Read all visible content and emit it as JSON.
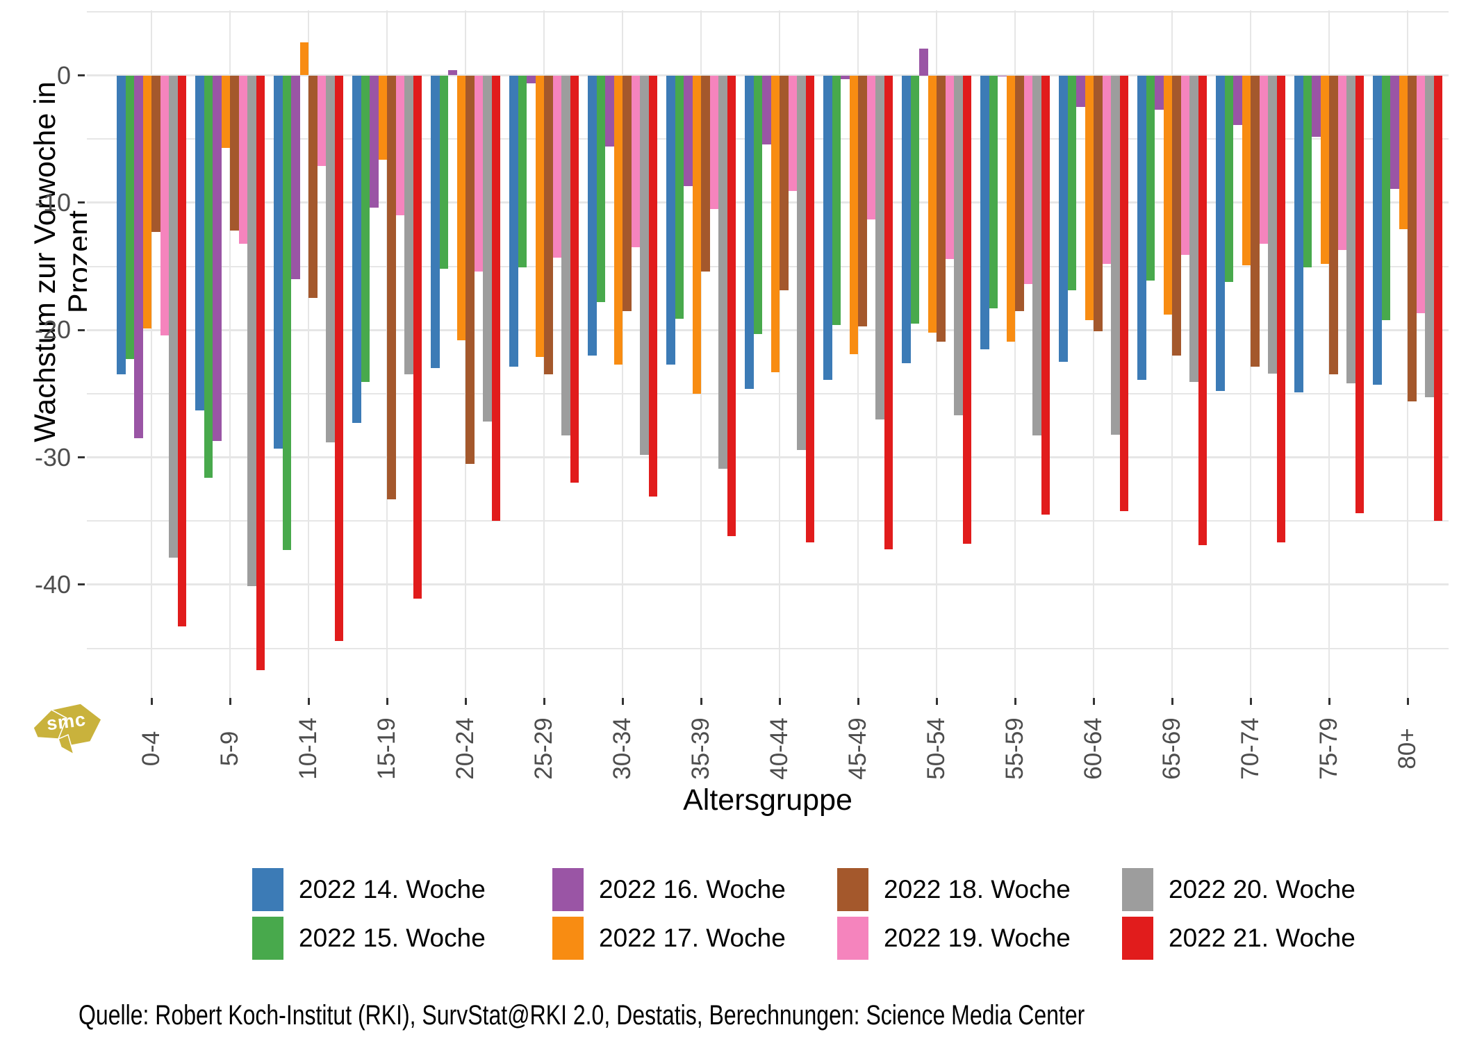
{
  "figure": {
    "y_axis_title": "Wachstum zur Vorwoche in Prozent",
    "x_axis_title": "Altersgruppe",
    "source": "Quelle: Robert Koch-Institut (RKI), SurvStat@RKI 2.0, Destatis, Berechnungen: Science Media Center",
    "logo_text": "smc",
    "logo_color": "#c9b23c"
  },
  "chart_data": {
    "type": "bar",
    "title": "",
    "xlabel": "Altersgruppe",
    "ylabel": "Wachstum zur Vorwoche in Prozent",
    "ylim": [
      -48.9,
      5.1
    ],
    "yticks": [
      0,
      -10,
      -20,
      -30,
      -40
    ],
    "grid_step": 5,
    "grid": "on",
    "legend_position": "bottom",
    "categories": [
      "0-4",
      "5-9",
      "10-14",
      "15-19",
      "20-24",
      "25-29",
      "30-34",
      "35-39",
      "40-44",
      "45-49",
      "50-54",
      "55-59",
      "60-64",
      "65-69",
      "70-74",
      "75-79",
      "80+"
    ],
    "series": [
      {
        "name": "2022 14. Woche",
        "color": "#3c7bb6",
        "values": [
          -23.5,
          -26.3,
          -29.3,
          -27.3,
          -23.0,
          -22.9,
          -22.0,
          -22.7,
          -24.6,
          -23.9,
          -22.6,
          -21.5,
          -22.5,
          -23.9,
          -24.8,
          -24.9,
          -24.3
        ]
      },
      {
        "name": "2022 15. Woche",
        "color": "#48a94c",
        "values": [
          -22.3,
          -31.6,
          -37.3,
          -24.1,
          -15.2,
          -15.1,
          -17.8,
          -19.1,
          -20.3,
          -19.6,
          -19.5,
          -18.3,
          -16.9,
          -16.1,
          -16.2,
          -15.1,
          -19.2
        ]
      },
      {
        "name": "2022 16. Woche",
        "color": "#9a55a5",
        "values": [
          -28.5,
          -28.7,
          -16.0,
          -10.4,
          0.4,
          -0.6,
          -5.6,
          -8.7,
          -5.4,
          -0.3,
          2.1,
          -0.1,
          -2.5,
          -2.7,
          -3.9,
          -4.8,
          -8.9
        ]
      },
      {
        "name": "2022 17. Woche",
        "color": "#f88c12",
        "values": [
          -19.9,
          -5.7,
          2.6,
          -6.6,
          -20.8,
          -22.1,
          -22.7,
          -25.0,
          -23.3,
          -21.9,
          -20.2,
          -20.9,
          -19.2,
          -18.8,
          -14.9,
          -14.8,
          -12.1
        ]
      },
      {
        "name": "2022 18. Woche",
        "color": "#a4582c",
        "values": [
          -12.3,
          -12.2,
          -17.5,
          -33.3,
          -30.5,
          -23.5,
          -18.5,
          -15.4,
          -16.9,
          -19.7,
          -20.9,
          -18.5,
          -20.1,
          -22.0,
          -22.9,
          -23.5,
          -25.6
        ]
      },
      {
        "name": "2022 19. Woche",
        "color": "#f584bd",
        "values": [
          -20.4,
          -13.2,
          -7.1,
          -11.0,
          -15.4,
          -14.3,
          -13.5,
          -10.5,
          -9.1,
          -11.3,
          -14.4,
          -16.4,
          -14.8,
          -14.1,
          -13.2,
          -13.7,
          -18.7
        ]
      },
      {
        "name": "2022 20. Woche",
        "color": "#9d9d9d",
        "values": [
          -37.9,
          -40.1,
          -28.8,
          -23.5,
          -27.2,
          -28.3,
          -29.8,
          -30.9,
          -29.4,
          -27.0,
          -26.7,
          -28.3,
          -28.2,
          -24.1,
          -23.4,
          -24.2,
          -25.3
        ]
      },
      {
        "name": "2022 21. Woche",
        "color": "#e11c1c",
        "values": [
          -43.3,
          -46.7,
          -44.4,
          -41.1,
          -35.0,
          -32.0,
          -33.1,
          -36.2,
          -36.7,
          -37.2,
          -36.8,
          -34.5,
          -34.2,
          -36.9,
          -36.7,
          -34.4,
          -35.0
        ]
      }
    ]
  }
}
